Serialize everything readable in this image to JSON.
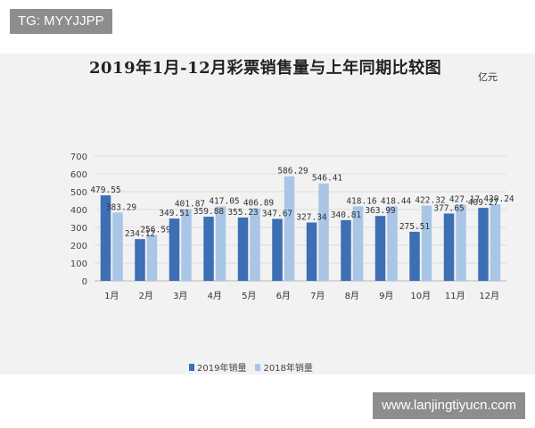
{
  "watermark_top": "TG: MYYJJPP",
  "watermark_bottom": "www.lanjingtiyucn.com",
  "colors": {
    "series1": "#3c6fb4",
    "series2": "#a9c6e7"
  },
  "chart_data": {
    "type": "bar",
    "title": "2019年1月-12月彩票销售量与上年同期比较图",
    "unit": "亿元",
    "categories": [
      "1月",
      "2月",
      "3月",
      "4月",
      "5月",
      "6月",
      "7月",
      "8月",
      "9月",
      "10月",
      "11月",
      "12月"
    ],
    "series": [
      {
        "name": "2019年销量",
        "values": [
          479.55,
          234.12,
          349.51,
          359.88,
          355.23,
          347.67,
          327.34,
          340.81,
          363.99,
          275.51,
          377.65,
          409.27
        ],
        "labels": [
          "479.55",
          "234.12",
          "349.51",
          "359.88",
          "355.23",
          "347.67",
          "327.34",
          "340.81",
          "363.99",
          "275.51",
          "377.65",
          "409.27"
        ]
      },
      {
        "name": "2018年销量",
        "values": [
          383.29,
          256.59,
          401.87,
          417.05,
          406.89,
          586.29,
          546.41,
          418.16,
          418.44,
          422.32,
          427.17,
          430.24
        ],
        "labels": [
          "383.29",
          "256.59",
          "401.87",
          "417.05",
          "406.89",
          "586.29",
          "546.41",
          "418.16",
          "418.44",
          "422.32",
          "427.17",
          "430.24"
        ]
      }
    ],
    "ylim": [
      0,
      700
    ],
    "yticks": [
      "0",
      "100",
      "200",
      "300",
      "400",
      "500",
      "600",
      "700"
    ],
    "grid": true,
    "legend": "bottom"
  }
}
